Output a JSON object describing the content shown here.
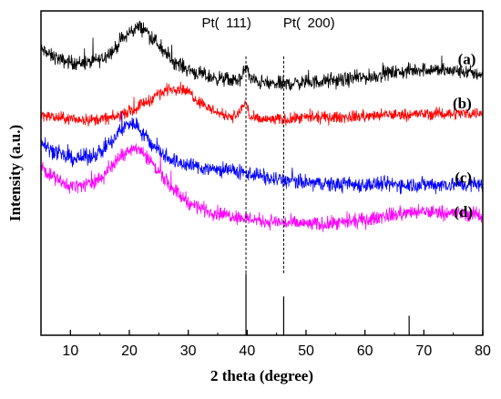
{
  "chart_data": {
    "type": "line",
    "title": "",
    "xlabel": "2 theta (degree)",
    "ylabel": "Intensity (a.u.)",
    "xlim": [
      5,
      80
    ],
    "ylim": [
      0,
      100
    ],
    "x_ticks": [
      10,
      20,
      30,
      40,
      50,
      60,
      70,
      80
    ],
    "x_tick_labels": [
      "10",
      "20",
      "30",
      "40",
      "50",
      "60",
      "70",
      "80"
    ],
    "y_tick_labels_shown": false,
    "grid": false,
    "legend": "none",
    "series": [
      {
        "name": "(a)",
        "color": "#000000",
        "noise": 2.2,
        "points": [
          [
            5,
            88
          ],
          [
            7,
            86
          ],
          [
            9,
            84.5
          ],
          [
            11,
            84
          ],
          [
            13,
            84
          ],
          [
            15,
            85
          ],
          [
            17,
            87.5
          ],
          [
            19,
            91.5
          ],
          [
            20.5,
            94
          ],
          [
            21.5,
            95
          ],
          [
            22.5,
            94.5
          ],
          [
            24,
            91.5
          ],
          [
            26,
            87
          ],
          [
            28,
            84
          ],
          [
            30,
            82
          ],
          [
            32,
            80.5
          ],
          [
            34,
            79.5
          ],
          [
            36,
            79
          ],
          [
            38,
            78.5
          ],
          [
            39,
            79
          ],
          [
            39.8,
            83
          ],
          [
            40.6,
            79
          ],
          [
            42,
            78
          ],
          [
            44,
            77.5
          ],
          [
            46,
            77.5
          ],
          [
            50,
            78
          ],
          [
            55,
            78.5
          ],
          [
            60,
            79.5
          ],
          [
            65,
            81
          ],
          [
            70,
            82
          ],
          [
            75,
            81.5
          ],
          [
            80,
            80.5
          ]
        ]
      },
      {
        "name": "(b)",
        "color": "#ff0000",
        "noise": 1.8,
        "points": [
          [
            5,
            68
          ],
          [
            8,
            67
          ],
          [
            11,
            66.5
          ],
          [
            14,
            66.5
          ],
          [
            17,
            67
          ],
          [
            20,
            69
          ],
          [
            23,
            72
          ],
          [
            25,
            74.5
          ],
          [
            27,
            76
          ],
          [
            28.5,
            76.2
          ],
          [
            30,
            75
          ],
          [
            32,
            72
          ],
          [
            34,
            69.5
          ],
          [
            36,
            68
          ],
          [
            38,
            67.5
          ],
          [
            39.8,
            71.5
          ],
          [
            40.6,
            67
          ],
          [
            42,
            66.5
          ],
          [
            46,
            66.5
          ],
          [
            50,
            67
          ],
          [
            55,
            67.2
          ],
          [
            60,
            67.5
          ],
          [
            65,
            68
          ],
          [
            70,
            68.2
          ],
          [
            75,
            68.4
          ],
          [
            80,
            68.5
          ]
        ]
      },
      {
        "name": "(c)",
        "color": "#0000ff",
        "noise": 2.4,
        "points": [
          [
            5,
            60
          ],
          [
            7,
            57
          ],
          [
            9,
            55
          ],
          [
            11,
            54.5
          ],
          [
            13,
            55
          ],
          [
            15,
            56.5
          ],
          [
            17,
            59.5
          ],
          [
            18.5,
            63
          ],
          [
            20,
            65.5
          ],
          [
            21,
            65
          ],
          [
            22.5,
            62
          ],
          [
            24,
            58.5
          ],
          [
            26,
            55.5
          ],
          [
            28,
            53.5
          ],
          [
            30,
            52.5
          ],
          [
            33,
            51.5
          ],
          [
            36,
            51
          ],
          [
            40,
            50
          ],
          [
            45,
            48
          ],
          [
            50,
            47
          ],
          [
            55,
            46.5
          ],
          [
            60,
            46.5
          ],
          [
            65,
            46.5
          ],
          [
            70,
            46.5
          ],
          [
            75,
            46.5
          ],
          [
            80,
            46.5
          ]
        ]
      },
      {
        "name": "(d)",
        "color": "#ff00ff",
        "noise": 2.2,
        "points": [
          [
            5,
            52
          ],
          [
            7,
            49
          ],
          [
            9,
            46.5
          ],
          [
            11,
            46
          ],
          [
            13,
            46.5
          ],
          [
            15,
            48.5
          ],
          [
            17,
            52
          ],
          [
            19,
            56
          ],
          [
            20.5,
            58
          ],
          [
            21.5,
            57.5
          ],
          [
            23,
            55
          ],
          [
            25,
            50.5
          ],
          [
            27,
            46
          ],
          [
            29,
            42.5
          ],
          [
            31,
            40
          ],
          [
            34,
            38
          ],
          [
            37,
            37
          ],
          [
            40,
            36
          ],
          [
            44,
            35
          ],
          [
            48,
            34.5
          ],
          [
            52,
            34.2
          ],
          [
            56,
            34.5
          ],
          [
            60,
            35.5
          ],
          [
            64,
            37
          ],
          [
            68,
            37.8
          ],
          [
            72,
            38
          ],
          [
            76,
            37.5
          ],
          [
            80,
            37
          ]
        ]
      }
    ],
    "reference_lines": [
      {
        "x": 39.8,
        "height": 19
      },
      {
        "x": 46.2,
        "height": 12
      },
      {
        "x": 67.5,
        "height": 6
      }
    ],
    "annotations": [
      {
        "label": "Pt( 111)",
        "x": 39.8,
        "x_text": 36.5,
        "y_text": 95
      },
      {
        "label": "Pt( 200)",
        "x": 46.2,
        "x_text": 50.5,
        "y_text": 95
      }
    ]
  }
}
